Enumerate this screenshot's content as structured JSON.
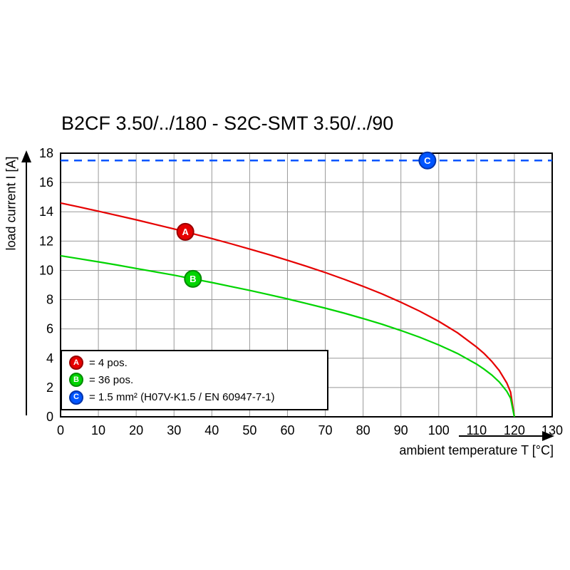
{
  "title": "B2CF 3.50/../180 - S2C-SMT 3.50/../90",
  "chart_data": {
    "type": "line",
    "title": "B2CF 3.50/../180 - S2C-SMT 3.50/../90",
    "xlabel": "ambient temperature T [°C]",
    "ylabel": "load current I [A]",
    "xlim": [
      0,
      130
    ],
    "ylim": [
      0,
      18
    ],
    "xticks": [
      0,
      10,
      20,
      30,
      40,
      50,
      60,
      70,
      80,
      90,
      100,
      110,
      120,
      130
    ],
    "yticks": [
      0,
      2,
      4,
      6,
      8,
      10,
      12,
      14,
      16,
      18
    ],
    "grid": true,
    "grid_color": "#999999",
    "legend_position": "bottom-left-inside",
    "series": [
      {
        "name": "A",
        "legend_label": "= 4 pos.",
        "color": "#e60000",
        "marker_edge": "#990000",
        "style": "solid",
        "x": [
          0,
          5,
          10,
          15,
          20,
          25,
          30,
          35,
          40,
          45,
          50,
          55,
          60,
          65,
          70,
          75,
          80,
          85,
          90,
          95,
          100,
          105,
          110,
          112,
          114,
          116,
          118,
          119,
          120
        ],
        "y": [
          14.6,
          14.32,
          14.04,
          13.75,
          13.45,
          13.14,
          12.83,
          12.5,
          12.17,
          11.82,
          11.45,
          11.08,
          10.69,
          10.28,
          9.85,
          9.39,
          8.91,
          8.39,
          7.82,
          7.21,
          6.52,
          5.73,
          4.77,
          4.32,
          3.79,
          3.16,
          2.31,
          1.69,
          0
        ],
        "marker": {
          "x": 33,
          "y": 12.63,
          "label": "A"
        }
      },
      {
        "name": "B",
        "legend_label": "= 36 pos.",
        "color": "#00d400",
        "marker_edge": "#008a00",
        "style": "solid",
        "x": [
          0,
          5,
          10,
          15,
          20,
          25,
          30,
          35,
          40,
          45,
          50,
          55,
          60,
          65,
          70,
          75,
          80,
          85,
          90,
          95,
          100,
          105,
          110,
          112,
          114,
          116,
          118,
          119,
          120
        ],
        "y": [
          11.0,
          10.79,
          10.58,
          10.36,
          10.13,
          9.9,
          9.67,
          9.42,
          9.17,
          8.9,
          8.63,
          8.35,
          8.05,
          7.74,
          7.42,
          7.08,
          6.71,
          6.32,
          5.89,
          5.43,
          4.91,
          4.32,
          3.6,
          3.25,
          2.86,
          2.38,
          1.74,
          1.27,
          0
        ],
        "marker": {
          "x": 35,
          "y": 9.42,
          "label": "B"
        }
      },
      {
        "name": "C",
        "legend_label": "= 1.5 mm² (H07V-K1.5 / EN 60947-7-1)",
        "color": "#0055ff",
        "marker_edge": "#0033aa",
        "style": "dashed",
        "x": [
          0,
          130
        ],
        "y": [
          17.5,
          17.5
        ],
        "marker": {
          "x": 97,
          "y": 17.5,
          "label": "C"
        }
      }
    ]
  }
}
